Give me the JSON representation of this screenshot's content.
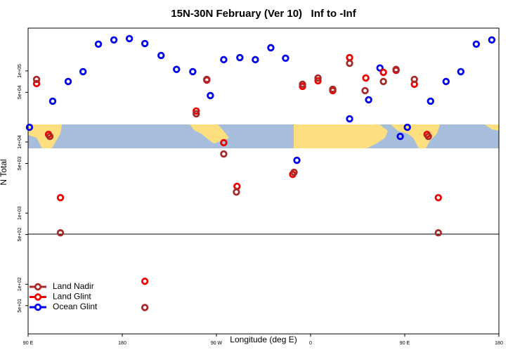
{
  "chart_data": {
    "type": "scatter",
    "title": "15N-30N February (Ver 10)   Inf to -Inf",
    "xlabel": "Longitude (deg E)",
    "ylabel": "N Total",
    "xlim": [
      90,
      540
    ],
    "ylim": [
      20,
      400000
    ],
    "log_y": true,
    "legend": "lower left",
    "xticks": [
      {
        "value": 90,
        "label": "90 E"
      },
      {
        "value": 180,
        "label": "180"
      },
      {
        "value": 270,
        "label": "90 W"
      },
      {
        "value": 360,
        "label": "0"
      },
      {
        "value": 450,
        "label": "90 E"
      },
      {
        "value": 540,
        "label": "180"
      }
    ],
    "yticks": [
      {
        "value": 50,
        "label": "5e+01"
      },
      {
        "value": 100,
        "label": "1e+02"
      },
      {
        "value": 500,
        "label": "5e+02"
      },
      {
        "value": 1000,
        "label": "1e+03"
      },
      {
        "value": 5000,
        "label": "5e+03"
      },
      {
        "value": 10000,
        "label": "1e+04"
      },
      {
        "value": 50000,
        "label": "5e+04"
      },
      {
        "value": 100000,
        "label": "1e+05"
      }
    ],
    "series": [
      {
        "name": "Land Nadir",
        "color": "#a52a2a",
        "x": [
          98.1,
          110.8,
          120.9,
          201.6,
          250.7,
          260.8,
          277.0,
          289.1,
          344.2,
          352.3,
          367.1,
          381.2,
          397.3,
          412.1,
          429.6,
          441.7,
          459.2,
          472.6,
          482.1
        ],
        "values": [
          76100,
          12000,
          528,
          47,
          24900,
          76100,
          6790,
          1980,
          3750,
          64900,
          79600,
          55300,
          128000,
          52800,
          71000,
          105000,
          76100,
          12000,
          528
        ]
      },
      {
        "name": "Land Glint",
        "color": "#ee0000",
        "x": [
          98.1,
          109.5,
          120.9,
          201.6,
          250.7,
          260.8,
          277.0,
          289.7,
          342.9,
          352.3,
          367.1,
          381.2,
          397.3,
          412.8,
          429.6,
          441.7,
          459.2,
          471.3,
          482.1
        ],
        "values": [
          66400,
          12800,
          1650,
          110,
          27300,
          74300,
          9780,
          2380,
          3510,
          60500,
          72700,
          52800,
          154000,
          79600,
          95500,
          102000,
          64900,
          12800,
          1650
        ]
      },
      {
        "name": "Ocean Glint",
        "color": "#0000ee",
        "x": [
          91.3,
          113.5,
          128.3,
          142.5,
          157.2,
          172.0,
          186.8,
          201.6,
          217.1,
          231.9,
          247.4,
          264.2,
          277.0,
          292.4,
          307.2,
          322.0,
          336.1,
          346.9,
          397.3,
          415.5,
          426.3,
          445.7,
          452.5,
          474.7,
          489.5,
          503.6,
          518.4,
          533.2
        ],
        "values": [
          16100,
          37500,
          71000,
          97700,
          238000,
          273000,
          285000,
          243000,
          165000,
          105000,
          97700,
          45000,
          144000,
          154000,
          144000,
          212000,
          151000,
          5530,
          21200,
          39300,
          110000,
          12000,
          16100,
          37500,
          71000,
          97700,
          238000,
          273000
        ]
      }
    ]
  }
}
